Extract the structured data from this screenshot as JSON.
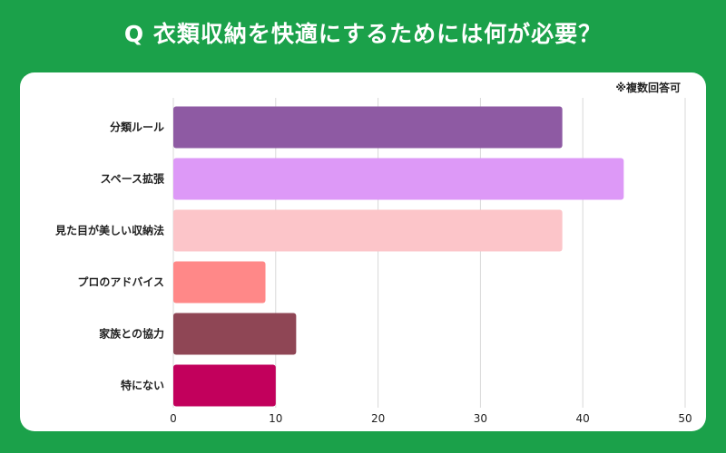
{
  "chart_data": {
    "type": "bar",
    "orientation": "horizontal",
    "title": "Q 衣類収納を快適にするためには何が必要？",
    "note": "※複数回答可",
    "categories": [
      "分類ルール",
      "スペース拡張",
      "見た目が美しい収納法",
      "プロのアドバイス",
      "家族との協力",
      "特にない"
    ],
    "values": [
      38,
      44,
      38,
      9,
      12,
      10
    ],
    "colors": [
      "#8e5aa3",
      "#dd99f7",
      "#fcc5c9",
      "#ff8888",
      "#8f4655",
      "#c2005c"
    ],
    "xlim": [
      0,
      50
    ],
    "xticks": [
      "0",
      "10",
      "20",
      "30",
      "40",
      "50"
    ],
    "grid": true,
    "xlabel": "",
    "ylabel": ""
  },
  "colors": {
    "background": "#1ba14a",
    "card": "#ffffff"
  }
}
